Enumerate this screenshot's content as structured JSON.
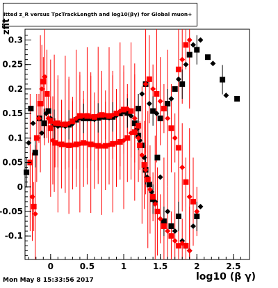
{
  "chart_data": {
    "type": "scatter",
    "title": "itted  z_R versus TpcTrackLength and log10(βγ) for Global muon+",
    "xlabel": "log10 (β γ)",
    "ylabel": "zfit",
    "xlim": [
      -0.35,
      2.72
    ],
    "ylim": [
      -0.148,
      0.322
    ],
    "x_ticks": [
      "0",
      "0.5",
      "1",
      "1.5",
      "2",
      "2.5"
    ],
    "y_ticks": [
      "-0.1",
      "-0.05",
      "0",
      "0.05",
      "0.1",
      "0.15",
      "0.2",
      "0.25",
      "0.3"
    ],
    "grid": false,
    "series": [
      {
        "color": "#000000",
        "marker": "mixed",
        "points": [
          [
            -0.33,
            0.03
          ],
          [
            -0.3,
            0.09
          ],
          [
            -0.27,
            0.16
          ],
          [
            -0.24,
            0.13
          ],
          [
            -0.21,
            0.07
          ],
          [
            -0.18,
            0.1
          ],
          [
            -0.15,
            0.14
          ],
          [
            -0.12,
            0.11
          ],
          [
            -0.09,
            0.13
          ],
          [
            -0.06,
            0.15
          ],
          [
            -0.03,
            0.155
          ],
          [
            0.0,
            0.14
          ],
          [
            0.05,
            0.128
          ],
          [
            0.1,
            0.124
          ],
          [
            0.15,
            0.127
          ],
          [
            0.2,
            0.124
          ],
          [
            0.25,
            0.127
          ],
          [
            0.3,
            0.129
          ],
          [
            0.35,
            0.137
          ],
          [
            0.4,
            0.141
          ],
          [
            0.45,
            0.14
          ],
          [
            0.5,
            0.139
          ],
          [
            0.55,
            0.14
          ],
          [
            0.6,
            0.138
          ],
          [
            0.65,
            0.141
          ],
          [
            0.7,
            0.142
          ],
          [
            0.75,
            0.143
          ],
          [
            0.8,
            0.141
          ],
          [
            0.85,
            0.143
          ],
          [
            0.9,
            0.146
          ],
          [
            0.95,
            0.15
          ],
          [
            1.0,
            0.153
          ],
          [
            1.05,
            0.151
          ],
          [
            1.1,
            0.145
          ],
          [
            1.15,
            0.13
          ],
          [
            1.18,
            0.118
          ],
          [
            1.2,
            0.105
          ],
          [
            1.22,
            0.095
          ],
          [
            1.25,
            0.085
          ],
          [
            1.28,
            0.06
          ],
          [
            1.3,
            0.035
          ],
          [
            1.32,
            0.02
          ],
          [
            1.35,
            0.005
          ],
          [
            1.38,
            -0.01
          ],
          [
            1.4,
            -0.025
          ],
          [
            1.43,
            -0.03
          ],
          [
            1.46,
            0.06
          ],
          [
            1.5,
            0.02
          ],
          [
            1.55,
            -0.07
          ],
          [
            1.6,
            -0.05
          ],
          [
            1.65,
            -0.08
          ],
          [
            1.7,
            -0.09
          ],
          [
            1.75,
            -0.06
          ],
          [
            1.8,
            -0.11
          ],
          [
            1.85,
            -0.12
          ],
          [
            1.9,
            -0.13
          ],
          [
            1.2,
            0.16
          ],
          [
            1.25,
            0.19
          ],
          [
            1.3,
            0.21
          ],
          [
            1.35,
            0.17
          ],
          [
            1.4,
            0.155
          ],
          [
            1.45,
            0.15
          ],
          [
            1.5,
            0.14
          ],
          [
            1.55,
            0.16
          ],
          [
            1.6,
            0.17
          ],
          [
            1.65,
            0.18
          ],
          [
            1.7,
            0.2
          ],
          [
            1.75,
            0.22
          ],
          [
            1.8,
            0.21
          ],
          [
            1.85,
            0.25
          ],
          [
            1.9,
            0.27
          ],
          [
            1.95,
            0.29
          ],
          [
            2.0,
            0.28
          ],
          [
            2.05,
            0.3
          ],
          [
            2.15,
            0.265
          ],
          [
            2.22,
            0.252
          ],
          [
            2.35,
            0.219
          ],
          [
            2.4,
            0.187
          ],
          [
            2.55,
            0.18
          ],
          [
            2.05,
            -0.04
          ],
          [
            2.0,
            -0.06
          ],
          [
            1.95,
            -0.08
          ]
        ]
      },
      {
        "color": "#ff0000",
        "marker": "mixed",
        "points": [
          [
            -0.28,
            0.05
          ],
          [
            -0.25,
            -0.02
          ],
          [
            -0.23,
            -0.04
          ],
          [
            -0.21,
            -0.055
          ],
          [
            -0.19,
            0.1
          ],
          [
            -0.16,
            0.14
          ],
          [
            -0.14,
            0.17
          ],
          [
            -0.12,
            0.2
          ],
          [
            -0.1,
            0.215
          ],
          [
            -0.08,
            0.225
          ],
          [
            -0.05,
            0.19
          ],
          [
            -0.03,
            0.14
          ],
          [
            0.0,
            0.12
          ],
          [
            0.03,
            0.095
          ],
          [
            0.06,
            0.09
          ],
          [
            0.1,
            0.088
          ],
          [
            0.15,
            0.087
          ],
          [
            0.2,
            0.086
          ],
          [
            0.25,
            0.085
          ],
          [
            0.3,
            0.085
          ],
          [
            0.35,
            0.087
          ],
          [
            0.4,
            0.088
          ],
          [
            0.45,
            0.09
          ],
          [
            0.5,
            0.089
          ],
          [
            0.55,
            0.087
          ],
          [
            0.6,
            0.086
          ],
          [
            0.65,
            0.084
          ],
          [
            0.7,
            0.083
          ],
          [
            0.75,
            0.084
          ],
          [
            0.8,
            0.086
          ],
          [
            0.85,
            0.088
          ],
          [
            0.9,
            0.09
          ],
          [
            0.95,
            0.092
          ],
          [
            1.0,
            0.095
          ],
          [
            1.05,
            0.1
          ],
          [
            1.1,
            0.11
          ],
          [
            1.15,
            0.112
          ],
          [
            1.2,
            0.1
          ],
          [
            1.22,
            0.085
          ],
          [
            1.25,
            0.065
          ],
          [
            1.28,
            0.045
          ],
          [
            1.3,
            0.035
          ],
          [
            1.33,
            0.015
          ],
          [
            1.36,
            -0.005
          ],
          [
            1.4,
            -0.02
          ],
          [
            1.43,
            -0.035
          ],
          [
            1.46,
            -0.05
          ],
          [
            1.5,
            -0.065
          ],
          [
            1.55,
            -0.08
          ],
          [
            1.6,
            -0.09
          ],
          [
            1.65,
            -0.1
          ],
          [
            1.7,
            -0.11
          ],
          [
            1.75,
            -0.12
          ],
          [
            1.8,
            -0.115
          ],
          [
            1.85,
            -0.12
          ],
          [
            1.9,
            -0.13
          ],
          [
            0.0,
            0.135
          ],
          [
            0.05,
            0.13
          ],
          [
            0.1,
            0.13
          ],
          [
            0.15,
            0.128
          ],
          [
            0.2,
            0.128
          ],
          [
            0.25,
            0.13
          ],
          [
            0.3,
            0.134
          ],
          [
            0.35,
            0.14
          ],
          [
            0.4,
            0.145
          ],
          [
            0.45,
            0.146
          ],
          [
            0.5,
            0.145
          ],
          [
            0.55,
            0.144
          ],
          [
            0.6,
            0.143
          ],
          [
            0.65,
            0.146
          ],
          [
            0.7,
            0.147
          ],
          [
            0.75,
            0.147
          ],
          [
            0.8,
            0.145
          ],
          [
            0.85,
            0.147
          ],
          [
            0.9,
            0.15
          ],
          [
            0.95,
            0.155
          ],
          [
            1.0,
            0.158
          ],
          [
            1.05,
            0.16
          ],
          [
            1.1,
            0.155
          ],
          [
            1.15,
            0.14
          ],
          [
            1.2,
            0.125
          ],
          [
            1.3,
            0.21
          ],
          [
            1.35,
            0.22
          ],
          [
            1.4,
            0.2
          ],
          [
            1.45,
            0.19
          ],
          [
            1.5,
            0.175
          ],
          [
            1.55,
            0.16
          ],
          [
            1.6,
            0.14
          ],
          [
            1.65,
            0.12
          ],
          [
            1.7,
            0.1
          ],
          [
            1.75,
            0.08
          ],
          [
            1.8,
            0.04
          ],
          [
            1.85,
            0.01
          ],
          [
            1.9,
            -0.02
          ],
          [
            1.95,
            -0.03
          ],
          [
            2.0,
            -0.05
          ],
          [
            1.75,
            0.24
          ],
          [
            1.8,
            0.26
          ],
          [
            1.85,
            0.29
          ],
          [
            1.9,
            0.3
          ]
        ]
      }
    ]
  },
  "timestamp": "Mon May  8 15:33:56 2017"
}
